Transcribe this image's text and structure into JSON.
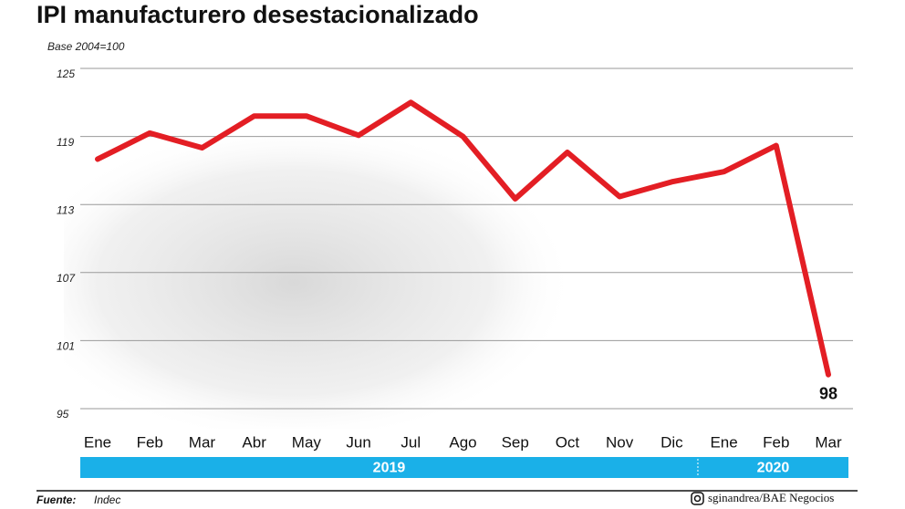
{
  "chart_data": {
    "type": "line",
    "title": "IPI manufacturero desestacionalizado",
    "y_axis_label": "Base 2004=100",
    "categories": [
      "Ene",
      "Feb",
      "Mar",
      "Abr",
      "May",
      "Jun",
      "Jul",
      "Ago",
      "Sep",
      "Oct",
      "Nov",
      "Dic",
      "Ene",
      "Feb",
      "Mar"
    ],
    "series": [
      {
        "name": "IPI",
        "color": "#e31e24",
        "values": [
          117.0,
          119.3,
          118.0,
          120.8,
          120.8,
          119.1,
          122.0,
          119.0,
          113.5,
          117.6,
          113.7,
          115.0,
          115.9,
          118.2,
          98
        ]
      }
    ],
    "labeled_point": 14,
    "year_groups": [
      {
        "label": "2019"
      },
      {
        "label": "2020"
      }
    ],
    "year_band_color": "#1ab0e8",
    "ylim": [
      95,
      125
    ],
    "yticks": [
      95,
      101,
      107,
      113,
      119,
      125
    ],
    "grid": true,
    "source_label": "Fuente:",
    "source": "Indec",
    "credit": "sginandrea/BAE Negocios"
  }
}
